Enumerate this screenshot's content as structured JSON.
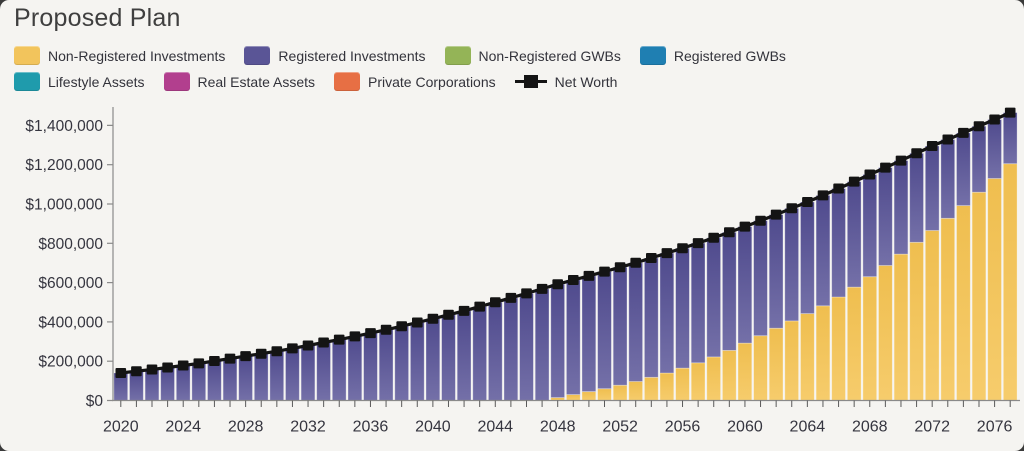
{
  "page": {
    "title": "Proposed Plan",
    "background_color": "#f5f4f1",
    "text_color": "#33333b"
  },
  "legend": {
    "rows": [
      [
        {
          "label": "Non-Registered Investments",
          "color": "#F2C45C",
          "marker": "swatch"
        },
        {
          "label": "Registered Investments",
          "color": "#5A5596",
          "marker": "swatch"
        },
        {
          "label": "Non-Registered GWBs",
          "color": "#94B457",
          "marker": "swatch"
        },
        {
          "label": "Registered GWBs",
          "color": "#1F7FB2",
          "marker": "swatch"
        }
      ],
      [
        {
          "label": "Lifestyle Assets",
          "color": "#1F9BAC",
          "marker": "swatch"
        },
        {
          "label": "Real Estate Assets",
          "color": "#B23F8E",
          "marker": "swatch"
        },
        {
          "label": "Private Corporations",
          "color": "#E76F44",
          "marker": "swatch"
        },
        {
          "label": "Net Worth",
          "color": "#141414",
          "marker": "line-marker"
        }
      ]
    ]
  },
  "chart_data": {
    "type": "bar",
    "subtype": "stacked-bars-with-line",
    "x": [
      2020,
      2021,
      2022,
      2023,
      2024,
      2025,
      2026,
      2027,
      2028,
      2029,
      2030,
      2031,
      2032,
      2033,
      2034,
      2035,
      2036,
      2037,
      2038,
      2039,
      2040,
      2041,
      2042,
      2043,
      2044,
      2045,
      2046,
      2047,
      2048,
      2049,
      2050,
      2051,
      2052,
      2053,
      2054,
      2055,
      2056,
      2057,
      2058,
      2059,
      2060,
      2061,
      2062,
      2063,
      2064,
      2065,
      2066,
      2067,
      2068,
      2069,
      2070,
      2071,
      2072,
      2073,
      2074,
      2075,
      2076,
      2077
    ],
    "x_axis": {
      "tick_labels": [
        "2020",
        "2024",
        "2028",
        "2032",
        "2036",
        "2040",
        "2044",
        "2048",
        "2052",
        "2056",
        "2060",
        "2064",
        "2068",
        "2072",
        "2076"
      ],
      "label_every_years": 4,
      "tick_every_years": 1
    },
    "y_axis": {
      "min": 0,
      "max": 1400000,
      "tick_step": 200000,
      "tick_labels": [
        "$0",
        "$200,000",
        "$400,000",
        "$600,000",
        "$800,000",
        "$1,000,000",
        "$1,200,000",
        "$1,400,000"
      ]
    },
    "grid": "off",
    "legend_position": "top",
    "series": [
      {
        "name": "Non-Registered Investments",
        "color": "#F2C45C",
        "color_top": "#EFBE4F",
        "color_bottom": "#F6CC6C",
        "values": [
          0,
          0,
          0,
          0,
          0,
          0,
          0,
          0,
          0,
          0,
          0,
          0,
          0,
          0,
          0,
          0,
          0,
          0,
          0,
          0,
          0,
          0,
          0,
          0,
          0,
          0,
          0,
          0,
          15000,
          30000,
          45000,
          60000,
          78000,
          97000,
          118000,
          140000,
          165000,
          192000,
          222000,
          255000,
          292000,
          330000,
          368000,
          405000,
          442000,
          482000,
          527000,
          577000,
          630000,
          687000,
          745000,
          805000,
          865000,
          927000,
          992000,
          1060000,
          1130000,
          1205000
        ]
      },
      {
        "name": "Registered Investments",
        "color": "#5A5596",
        "color_top": "#4F4A8D",
        "color_bottom": "#7470A8",
        "values": [
          140000,
          149000,
          158000,
          168000,
          178000,
          189000,
          201000,
          213000,
          226000,
          238000,
          251000,
          265000,
          280000,
          295000,
          310000,
          326000,
          343000,
          360000,
          378000,
          397000,
          416000,
          436000,
          456000,
          478000,
          500000,
          522000,
          545000,
          568000,
          577000,
          583000,
          589000,
          596000,
          600000,
          604000,
          607000,
          610000,
          610000,
          609000,
          606000,
          601000,
          593000,
          585000,
          578000,
          573000,
          568000,
          562000,
          552000,
          537000,
          520000,
          498000,
          476000,
          453000,
          430000,
          401000,
          370000,
          336000,
          300000,
          260000
        ]
      }
    ],
    "line": {
      "name": "Net Worth",
      "color": "#141414",
      "marker": "square",
      "values": [
        140000,
        149000,
        158000,
        168000,
        178000,
        189000,
        201000,
        213000,
        226000,
        238000,
        251000,
        265000,
        280000,
        295000,
        310000,
        326000,
        343000,
        360000,
        378000,
        397000,
        416000,
        436000,
        456000,
        478000,
        500000,
        522000,
        545000,
        568000,
        592000,
        613000,
        634000,
        656000,
        678000,
        701000,
        725000,
        750000,
        775000,
        801000,
        828000,
        856000,
        885000,
        915000,
        946000,
        978000,
        1010000,
        1044000,
        1079000,
        1114000,
        1150000,
        1185000,
        1221000,
        1258000,
        1295000,
        1328000,
        1362000,
        1396000,
        1430000,
        1465000
      ]
    },
    "axis_color": "#8a8a8a",
    "tick_text_color": "#35353f"
  }
}
